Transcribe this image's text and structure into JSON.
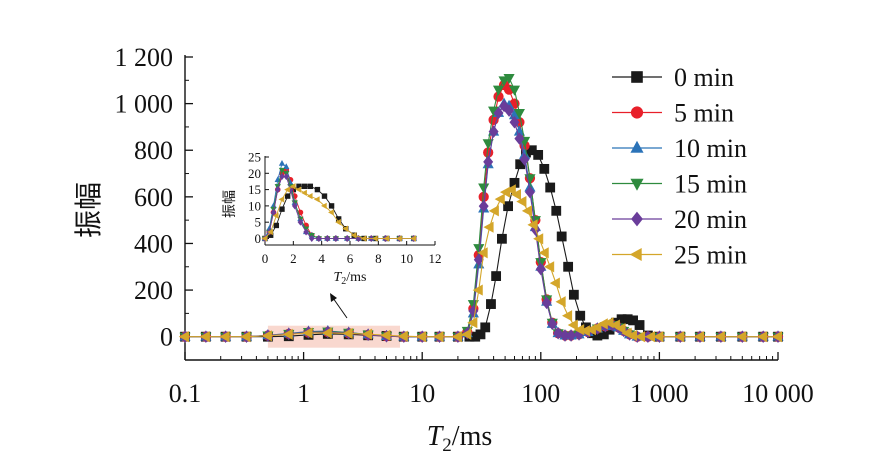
{
  "chart_data": [
    {
      "type": "scatter",
      "title": "",
      "xlabel": "T2/ms",
      "xlabel_main": "T",
      "xlabel_sub": "2",
      "xlabel_rest": "/ms",
      "ylabel": "振幅",
      "x_scale": "log",
      "xlim": [
        0.1,
        10000
      ],
      "ylim": [
        -100,
        1200
      ],
      "x_ticks": [
        0.1,
        1,
        10,
        100,
        1000,
        10000
      ],
      "x_tick_labels": [
        "0.1",
        "1",
        "10",
        "100",
        "1 000",
        "10 000"
      ],
      "y_ticks": [
        0,
        200,
        400,
        600,
        800,
        1000,
        1200
      ],
      "y_tick_labels": [
        "0",
        "200",
        "400",
        "600",
        "800",
        "1 000",
        "1 200"
      ],
      "legend_position": "top-right",
      "highlight_region": {
        "x_from": 0.5,
        "x_to": 6.5,
        "note": "region enlarged in inset"
      },
      "series": [
        {
          "name": "0 min",
          "color": "#1a1a1a",
          "marker": "square",
          "x": [
            0.1,
            0.15,
            0.22,
            0.33,
            0.5,
            0.75,
            1.1,
            1.6,
            2.4,
            3.5,
            5,
            7,
            10,
            14,
            20,
            25,
            28,
            31,
            34,
            38,
            42,
            47,
            53,
            60,
            67,
            75,
            84,
            95,
            107,
            120,
            135,
            150,
            170,
            190,
            215,
            240,
            270,
            300,
            340,
            380,
            430,
            480,
            540,
            600,
            680,
            800,
            1000,
            1500,
            2200,
            3300,
            5000,
            7500,
            10000
          ],
          "y": [
            0,
            0,
            0,
            0,
            0,
            2,
            8,
            12,
            10,
            6,
            3,
            0,
            0,
            0,
            0,
            0,
            0,
            10,
            40,
            140,
            260,
            420,
            560,
            660,
            740,
            790,
            800,
            780,
            720,
            640,
            540,
            430,
            300,
            180,
            90,
            40,
            15,
            5,
            10,
            30,
            60,
            75,
            75,
            70,
            50,
            5,
            0,
            0,
            0,
            0,
            0,
            0,
            0
          ]
        },
        {
          "name": "5 min",
          "color": "#e8202a",
          "marker": "circle",
          "x": [
            0.1,
            0.15,
            0.22,
            0.33,
            0.5,
            0.75,
            1.1,
            1.6,
            2.4,
            3.5,
            5,
            7,
            10,
            14,
            20,
            24,
            27,
            30,
            33,
            36,
            40,
            44,
            49,
            54,
            60,
            66,
            73,
            81,
            90,
            100,
            112,
            125,
            140,
            160,
            180,
            210,
            250,
            300,
            350,
            400,
            450,
            500,
            560,
            650,
            800,
            1000,
            1500,
            2200,
            3300,
            5000,
            7500,
            10000
          ],
          "y": [
            0,
            0,
            0,
            0,
            5,
            12,
            18,
            20,
            15,
            8,
            2,
            0,
            0,
            0,
            0,
            20,
            120,
            350,
            600,
            790,
            930,
            1030,
            1080,
            1060,
            1000,
            920,
            820,
            680,
            500,
            320,
            160,
            60,
            15,
            5,
            5,
            10,
            20,
            35,
            45,
            50,
            40,
            25,
            10,
            0,
            0,
            0,
            0,
            0,
            0,
            0,
            0,
            0
          ]
        },
        {
          "name": "10 min",
          "color": "#2b73b8",
          "marker": "triangle-up",
          "x": [
            0.1,
            0.15,
            0.22,
            0.33,
            0.5,
            0.75,
            1.1,
            1.6,
            2.4,
            3.5,
            5,
            7,
            10,
            14,
            20,
            24,
            27,
            30,
            33,
            36,
            40,
            44,
            49,
            54,
            60,
            66,
            73,
            81,
            90,
            100,
            112,
            125,
            140,
            160,
            180,
            210,
            250,
            300,
            350,
            400,
            450,
            500,
            560,
            650,
            800,
            1000,
            1500,
            2200,
            3300,
            5000,
            7500,
            10000
          ],
          "y": [
            0,
            0,
            0,
            0,
            6,
            14,
            22,
            24,
            18,
            10,
            3,
            0,
            0,
            0,
            0,
            15,
            100,
            310,
            550,
            740,
            880,
            960,
            1000,
            990,
            950,
            880,
            780,
            640,
            470,
            300,
            150,
            55,
            15,
            5,
            5,
            10,
            20,
            35,
            45,
            50,
            40,
            25,
            10,
            0,
            0,
            0,
            0,
            0,
            0,
            0,
            0,
            0
          ]
        },
        {
          "name": "15 min",
          "color": "#2e8b3e",
          "marker": "triangle-down",
          "x": [
            0.1,
            0.15,
            0.22,
            0.33,
            0.5,
            0.75,
            1.1,
            1.6,
            2.4,
            3.5,
            5,
            7,
            10,
            14,
            20,
            24,
            27,
            30,
            33,
            36,
            40,
            44,
            49,
            54,
            60,
            66,
            73,
            81,
            90,
            100,
            112,
            125,
            140,
            160,
            180,
            210,
            250,
            300,
            350,
            400,
            450,
            500,
            560,
            650,
            800,
            1000,
            1500,
            2200,
            3300,
            5000,
            7500,
            10000
          ],
          "y": [
            0,
            0,
            0,
            0,
            5,
            12,
            20,
            22,
            17,
            9,
            2,
            0,
            0,
            0,
            0,
            25,
            140,
            380,
            640,
            830,
            970,
            1060,
            1100,
            1110,
            1060,
            960,
            840,
            680,
            500,
            320,
            160,
            60,
            15,
            5,
            5,
            10,
            20,
            35,
            45,
            50,
            40,
            25,
            10,
            0,
            0,
            0,
            0,
            0,
            0,
            0,
            0,
            0
          ]
        },
        {
          "name": "20 min",
          "color": "#6a3d9a",
          "marker": "diamond",
          "x": [
            0.1,
            0.15,
            0.22,
            0.33,
            0.5,
            0.75,
            1.1,
            1.6,
            2.4,
            3.5,
            5,
            7,
            10,
            14,
            20,
            24,
            27,
            30,
            33,
            36,
            40,
            44,
            49,
            54,
            60,
            66,
            73,
            81,
            90,
            100,
            112,
            125,
            140,
            160,
            180,
            210,
            250,
            300,
            350,
            400,
            450,
            500,
            560,
            650,
            800,
            1000,
            1500,
            2200,
            3300,
            5000,
            7500,
            10000
          ],
          "y": [
            0,
            0,
            0,
            0,
            5,
            12,
            19,
            20,
            15,
            8,
            2,
            0,
            0,
            0,
            0,
            15,
            110,
            330,
            560,
            750,
            880,
            960,
            990,
            970,
            920,
            850,
            760,
            620,
            460,
            290,
            145,
            55,
            15,
            5,
            5,
            10,
            20,
            35,
            45,
            50,
            40,
            25,
            10,
            0,
            0,
            0,
            0,
            0,
            0,
            0,
            0,
            0
          ]
        },
        {
          "name": "25 min",
          "color": "#d4a62a",
          "marker": "triangle-left",
          "x": [
            0.1,
            0.15,
            0.22,
            0.33,
            0.5,
            0.75,
            1.1,
            1.6,
            2.4,
            3.5,
            5,
            7,
            10,
            14,
            20,
            24,
            27,
            30,
            33,
            37,
            41,
            46,
            51,
            57,
            63,
            70,
            78,
            87,
            97,
            108,
            120,
            134,
            150,
            170,
            190,
            215,
            240,
            270,
            300,
            340,
            380,
            430,
            480,
            540,
            600,
            700,
            850,
            1000,
            1500,
            2200,
            3300,
            5000,
            7500,
            10000
          ],
          "y": [
            0,
            0,
            0,
            0,
            4,
            10,
            16,
            16,
            14,
            11,
            6,
            2,
            0,
            0,
            0,
            10,
            60,
            200,
            360,
            470,
            540,
            590,
            620,
            630,
            610,
            580,
            540,
            480,
            420,
            360,
            300,
            230,
            150,
            90,
            50,
            30,
            25,
            30,
            40,
            55,
            60,
            50,
            35,
            15,
            5,
            0,
            0,
            0,
            0,
            0,
            0,
            0,
            0,
            0
          ]
        }
      ]
    },
    {
      "type": "line",
      "role": "inset",
      "title": "",
      "xlabel": "T2/ms",
      "xlabel_main": "T",
      "xlabel_sub": "2",
      "xlabel_rest": "/ms",
      "ylabel": "振幅",
      "x_scale": "linear",
      "xlim": [
        0,
        12
      ],
      "ylim": [
        -2,
        25
      ],
      "x_ticks": [
        0,
        2,
        4,
        6,
        8,
        10,
        12
      ],
      "x_tick_labels": [
        "0",
        "2",
        "4",
        "6",
        "8",
        "10",
        "12"
      ],
      "y_ticks": [
        0,
        5,
        10,
        15,
        20,
        25
      ],
      "y_tick_labels": [
        "0",
        "5",
        "10",
        "15",
        "20",
        "25"
      ],
      "series": [
        {
          "name": "0 min",
          "color": "#1a1a1a",
          "marker": "square",
          "x": [
            0,
            0.4,
            0.8,
            1.2,
            1.6,
            2,
            2.4,
            2.8,
            3.2,
            3.7,
            4.2,
            4.7,
            5.2,
            5.7,
            6.3,
            7,
            7.8,
            8.6,
            9.5,
            10.5
          ],
          "y": [
            0,
            1,
            4,
            9,
            13,
            15,
            16,
            16,
            16,
            15,
            13,
            10,
            6,
            3,
            1,
            0,
            0,
            0,
            0,
            0
          ]
        },
        {
          "name": "5 min",
          "color": "#e8202a",
          "marker": "circle",
          "x": [
            0,
            0.3,
            0.6,
            0.9,
            1.2,
            1.5,
            1.8,
            2.1,
            2.5,
            2.9,
            3.3,
            3.8,
            4.4,
            5,
            5.8,
            6.6,
            7.5,
            8.5,
            9.5,
            10.5
          ],
          "y": [
            0,
            2,
            8,
            15,
            20,
            21,
            18,
            13,
            8,
            4,
            1,
            0,
            0,
            0,
            0,
            0,
            0,
            0,
            0,
            0
          ]
        },
        {
          "name": "10 min",
          "color": "#2b73b8",
          "marker": "triangle-up",
          "x": [
            0,
            0.3,
            0.6,
            0.9,
            1.2,
            1.5,
            1.8,
            2.1,
            2.5,
            2.9,
            3.3,
            3.8,
            4.4,
            5,
            5.8,
            6.6,
            7.5,
            8.5,
            9.5,
            10.5
          ],
          "y": [
            0,
            3,
            10,
            18,
            23,
            22,
            17,
            11,
            6,
            2,
            1,
            0,
            0,
            0,
            0,
            0,
            0,
            0,
            0,
            0
          ]
        },
        {
          "name": "15 min",
          "color": "#2e8b3e",
          "marker": "triangle-down",
          "x": [
            0,
            0.3,
            0.6,
            0.9,
            1.2,
            1.5,
            1.8,
            2.1,
            2.5,
            2.9,
            3.3,
            3.8,
            4.4,
            5,
            5.8,
            6.6,
            7.5,
            8.5,
            9.5,
            10.5
          ],
          "y": [
            0,
            2,
            9,
            16,
            21,
            20,
            16,
            11,
            6,
            3,
            1,
            0,
            0,
            0,
            0,
            0,
            0,
            0,
            0,
            0
          ]
        },
        {
          "name": "20 min",
          "color": "#6a3d9a",
          "marker": "diamond",
          "x": [
            0,
            0.3,
            0.6,
            0.9,
            1.2,
            1.5,
            1.8,
            2.1,
            2.5,
            2.9,
            3.3,
            3.8,
            4.4,
            5,
            5.8,
            6.6,
            7.5,
            8.5,
            9.5,
            10.5
          ],
          "y": [
            0,
            2,
            8,
            15,
            19,
            19,
            15,
            10,
            5,
            2,
            0,
            0,
            0,
            0,
            0,
            0,
            0,
            0,
            0,
            0
          ]
        },
        {
          "name": "25 min",
          "color": "#d4a62a",
          "marker": "triangle-left",
          "x": [
            0,
            0.4,
            0.8,
            1.2,
            1.6,
            2,
            2.4,
            2.8,
            3.2,
            3.7,
            4.2,
            4.7,
            5.2,
            5.7,
            6.3,
            7,
            7.8,
            8.6,
            9.5,
            10.5
          ],
          "y": [
            0,
            2,
            7,
            12,
            15,
            16,
            15,
            14,
            13,
            12,
            10,
            8,
            5,
            3,
            1,
            0,
            0,
            0,
            0,
            0
          ]
        }
      ]
    }
  ]
}
